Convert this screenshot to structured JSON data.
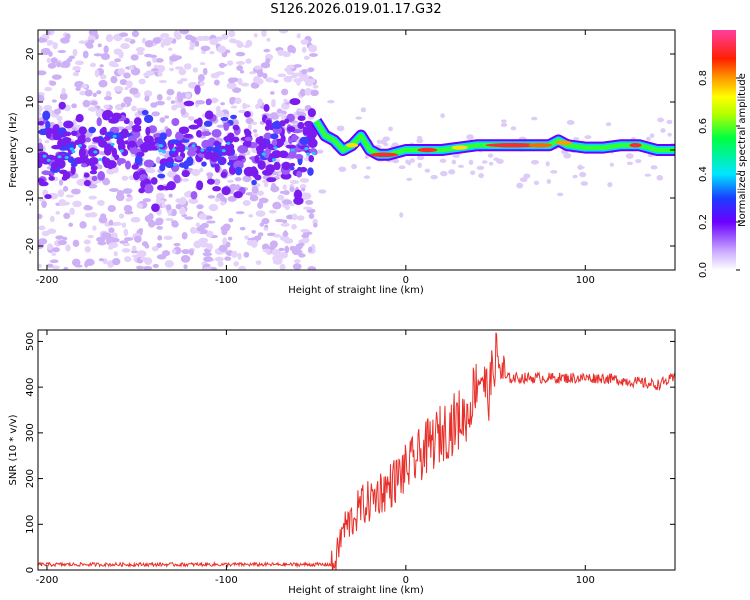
{
  "title": "S126.2026.019.01.17.G32",
  "chart_data": [
    {
      "type": "heatmap",
      "xlabel": "Height of straight line (km)",
      "ylabel": "Frequency (Hz)",
      "xlim": [
        -205,
        150
      ],
      "ylim": [
        -25,
        25
      ],
      "xticks": [
        -200,
        -100,
        0,
        100
      ],
      "yticks": [
        -20,
        -10,
        0,
        10,
        20
      ],
      "xtick_labels": [
        "-200",
        "-100",
        "0",
        "100"
      ],
      "ytick_labels": [
        "-20",
        "-10",
        "0",
        "10",
        "20"
      ],
      "colorbar": {
        "label": "Normalized spectral amplitude",
        "range": [
          0,
          1
        ],
        "ticks": [
          0.0,
          0.2,
          0.4,
          0.6,
          0.8
        ],
        "tick_labels": [
          "0.0",
          "0.2",
          "0.4",
          "0.6",
          "0.8"
        ]
      },
      "noise_region_x": [
        -205,
        -50
      ],
      "ridge": {
        "x": [
          -50,
          -45,
          -40,
          -35,
          -30,
          -25,
          -20,
          -15,
          -10,
          0,
          10,
          20,
          30,
          40,
          50,
          60,
          70,
          80,
          85,
          90,
          100,
          110,
          120,
          125,
          130,
          140,
          150
        ],
        "y": [
          6,
          3,
          2,
          0,
          1,
          3,
          0,
          -1,
          -1,
          0,
          0,
          0,
          0.5,
          1,
          1,
          1,
          1,
          1,
          2,
          1,
          0.5,
          0.5,
          1,
          1,
          1,
          0,
          0
        ]
      }
    },
    {
      "type": "line",
      "xlabel": "Height of straight line (km)",
      "ylabel": "SNR (10 * v/v)",
      "xlim": [
        -205,
        150
      ],
      "ylim": [
        0,
        525
      ],
      "xticks": [
        -200,
        -100,
        0,
        100
      ],
      "yticks": [
        0,
        100,
        200,
        300,
        400,
        500
      ],
      "xtick_labels": [
        "-200",
        "-100",
        "0",
        "100"
      ],
      "ytick_labels": [
        "0",
        "100",
        "200",
        "300",
        "400",
        "500"
      ],
      "series": [
        {
          "name": "SNR",
          "color": "#e8302a",
          "x": [
            -205,
            -150,
            -100,
            -60,
            -40,
            -38,
            -35,
            -30,
            -25,
            -20,
            -15,
            -10,
            -5,
            0,
            10,
            20,
            30,
            35,
            38,
            42,
            46,
            50,
            55,
            60,
            70,
            80,
            90,
            100,
            110,
            120,
            130,
            140,
            150
          ],
          "y": [
            12,
            12,
            12,
            12,
            12,
            40,
            90,
            110,
            140,
            150,
            170,
            180,
            200,
            220,
            260,
            300,
            330,
            340,
            400,
            430,
            380,
            470,
            420,
            420,
            420,
            420,
            420,
            420,
            420,
            415,
            410,
            405,
            420
          ]
        }
      ]
    }
  ]
}
